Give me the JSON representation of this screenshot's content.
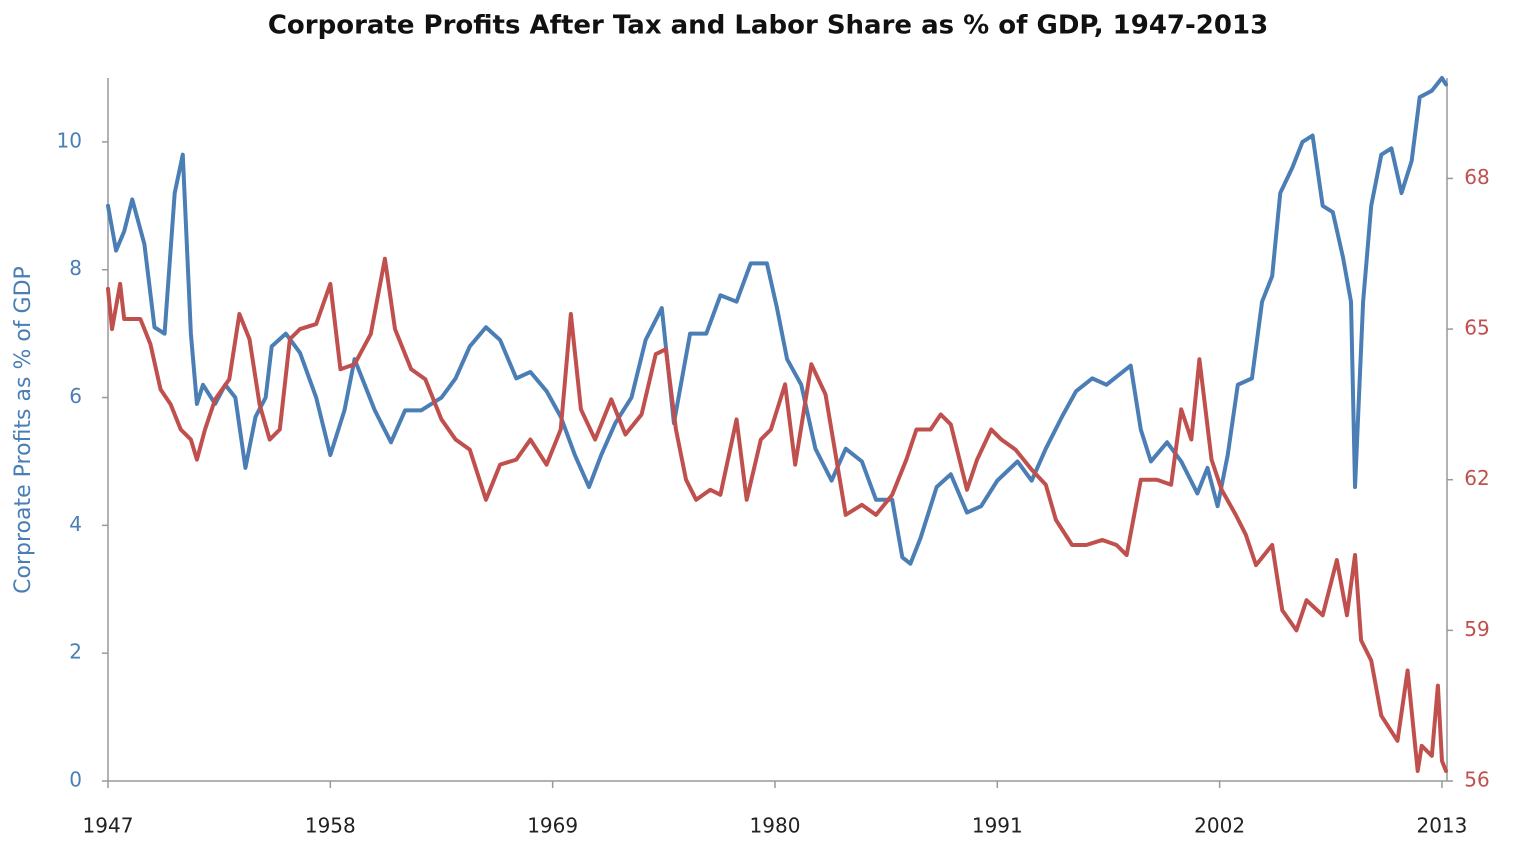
{
  "chart_data": {
    "type": "line",
    "title": "Corporate Profits After Tax and Labor Share as % of GDP, 1947-2013",
    "y_label": "Corproate Profits as % of GDP",
    "xlim": [
      1947,
      2013.25
    ],
    "xticks": [
      1947,
      1958,
      1969,
      1980,
      1991,
      2002,
      2013
    ],
    "ylim": [
      0,
      11
    ],
    "yticks": [
      0,
      2,
      4,
      6,
      8,
      10
    ],
    "y2lim": [
      56,
      70
    ],
    "y2ticks": [
      56,
      59,
      62,
      65,
      68
    ],
    "grid": false,
    "series": [
      {
        "color": "#4a7eb5",
        "axis": "y",
        "x": [
          1947.0,
          1947.4,
          1947.8,
          1948.2,
          1948.8,
          1949.3,
          1949.8,
          1950.3,
          1950.7,
          1951.1,
          1951.4,
          1951.7,
          1952.3,
          1952.8,
          1953.3,
          1953.8,
          1954.3,
          1954.8,
          1955.1,
          1955.8,
          1956.5,
          1957.3,
          1958.0,
          1958.7,
          1959.2,
          1959.7,
          1960.2,
          1961.0,
          1961.7,
          1962.5,
          1963.5,
          1964.2,
          1964.9,
          1965.7,
          1966.4,
          1967.2,
          1967.9,
          1968.7,
          1969.4,
          1970.1,
          1970.8,
          1971.4,
          1972.1,
          1972.9,
          1973.6,
          1974.4,
          1975.0,
          1975.8,
          1976.6,
          1977.3,
          1978.1,
          1978.8,
          1979.6,
          1980.1,
          1980.6,
          1981.3,
          1982.0,
          1982.8,
          1983.5,
          1984.3,
          1985.0,
          1985.8,
          1986.3,
          1986.7,
          1987.2,
          1988.0,
          1988.7,
          1989.5,
          1990.2,
          1991.0,
          1992.0,
          1992.7,
          1993.4,
          1994.2,
          1994.9,
          1995.7,
          1996.4,
          1997.2,
          1997.6,
          1998.1,
          1998.6,
          1999.4,
          2000.1,
          2000.9,
          2001.4,
          2001.9,
          2002.4,
          2002.9,
          2003.6,
          2004.1,
          2004.6,
          2005.0,
          2005.6,
          2006.1,
          2006.6,
          2007.1,
          2007.6,
          2008.1,
          2008.5,
          2008.7,
          2009.1,
          2009.5,
          2010.0,
          2010.5,
          2011.0,
          2011.5,
          2011.9,
          2012.5,
          2013.0,
          2013.2
        ],
        "values": [
          9.0,
          8.3,
          8.6,
          9.1,
          8.4,
          7.1,
          7.0,
          9.2,
          9.8,
          7.0,
          5.9,
          6.2,
          5.9,
          6.2,
          6.0,
          4.9,
          5.7,
          6.0,
          6.8,
          7.0,
          6.7,
          6.0,
          5.1,
          5.8,
          6.6,
          6.2,
          5.8,
          5.3,
          5.8,
          5.8,
          6.0,
          6.3,
          6.8,
          7.1,
          6.9,
          6.3,
          6.4,
          6.1,
          5.7,
          5.1,
          4.6,
          5.1,
          5.6,
          6.0,
          6.9,
          7.4,
          5.6,
          7.0,
          7.0,
          7.6,
          7.5,
          8.1,
          8.1,
          7.4,
          6.6,
          6.2,
          5.2,
          4.7,
          5.2,
          5.0,
          4.4,
          4.4,
          3.5,
          3.4,
          3.8,
          4.6,
          4.8,
          4.2,
          4.3,
          4.7,
          5.0,
          4.7,
          5.2,
          5.7,
          6.1,
          6.3,
          6.2,
          6.4,
          6.5,
          5.5,
          5.0,
          5.3,
          5.0,
          4.5,
          4.9,
          4.3,
          5.1,
          6.2,
          6.3,
          7.5,
          7.9,
          9.2,
          9.6,
          10.0,
          10.1,
          9.0,
          8.9,
          8.2,
          7.5,
          4.6,
          7.5,
          9.0,
          9.8,
          9.9,
          9.2,
          9.7,
          10.7,
          10.8,
          11.0,
          10.9
        ]
      },
      {
        "color": "#c0504d",
        "axis": "y2",
        "x": [
          1947.0,
          1947.2,
          1947.6,
          1947.8,
          1948.6,
          1949.1,
          1949.6,
          1950.1,
          1950.6,
          1951.1,
          1951.4,
          1951.8,
          1952.3,
          1953.0,
          1953.5,
          1954.0,
          1954.5,
          1955.0,
          1955.5,
          1956.0,
          1956.5,
          1957.3,
          1958.0,
          1958.5,
          1959.2,
          1960.0,
          1960.7,
          1961.2,
          1962.0,
          1962.7,
          1963.5,
          1964.2,
          1964.9,
          1965.7,
          1966.4,
          1967.2,
          1967.9,
          1968.7,
          1969.4,
          1969.9,
          1970.4,
          1971.1,
          1971.9,
          1972.6,
          1973.4,
          1974.1,
          1974.6,
          1975.1,
          1975.6,
          1976.1,
          1976.8,
          1977.3,
          1978.1,
          1978.6,
          1979.3,
          1979.8,
          1980.5,
          1981.0,
          1981.8,
          1982.5,
          1983.0,
          1983.5,
          1984.3,
          1985.0,
          1985.8,
          1986.5,
          1987.0,
          1987.7,
          1988.2,
          1988.7,
          1989.5,
          1990.0,
          1990.7,
          1991.2,
          1991.9,
          1992.7,
          1993.4,
          1993.9,
          1994.7,
          1995.4,
          1996.2,
          1996.9,
          1997.4,
          1998.1,
          1998.9,
          1999.6,
          2000.1,
          2000.6,
          2001.0,
          2001.6,
          2002.1,
          2002.8,
          2003.3,
          2003.8,
          2004.6,
          2005.1,
          2005.8,
          2006.3,
          2007.1,
          2007.8,
          2008.3,
          2008.7,
          2009.0,
          2009.5,
          2010.0,
          2010.8,
          2011.3,
          2011.8,
          2012.0,
          2012.5,
          2012.8,
          2013.0,
          2013.2
        ],
        "values": [
          65.8,
          65.0,
          65.9,
          65.2,
          65.2,
          64.7,
          63.8,
          63.5,
          63.0,
          62.8,
          62.4,
          63.0,
          63.6,
          64.0,
          65.3,
          64.8,
          63.5,
          62.8,
          63.0,
          64.8,
          65.0,
          65.1,
          65.9,
          64.2,
          64.3,
          64.9,
          66.4,
          65.0,
          64.2,
          64.0,
          63.2,
          62.8,
          62.6,
          61.6,
          62.3,
          62.4,
          62.8,
          62.3,
          63.0,
          65.3,
          63.4,
          62.8,
          63.6,
          62.9,
          63.3,
          64.5,
          64.6,
          63.0,
          62.0,
          61.6,
          61.8,
          61.7,
          63.2,
          61.6,
          62.8,
          63.0,
          63.9,
          62.3,
          64.3,
          63.7,
          62.5,
          61.3,
          61.5,
          61.3,
          61.7,
          62.4,
          63.0,
          63.0,
          63.3,
          63.1,
          61.8,
          62.4,
          63.0,
          62.8,
          62.6,
          62.2,
          61.9,
          61.2,
          60.7,
          60.7,
          60.8,
          60.7,
          60.5,
          62.0,
          62.0,
          61.9,
          63.4,
          62.8,
          64.4,
          62.4,
          61.8,
          61.3,
          60.9,
          60.3,
          60.7,
          59.4,
          59.0,
          59.6,
          59.3,
          60.4,
          59.3,
          60.5,
          58.8,
          58.4,
          57.3,
          56.8,
          58.2,
          56.2,
          56.7,
          56.5,
          57.9,
          56.4,
          56.2
        ]
      }
    ]
  }
}
